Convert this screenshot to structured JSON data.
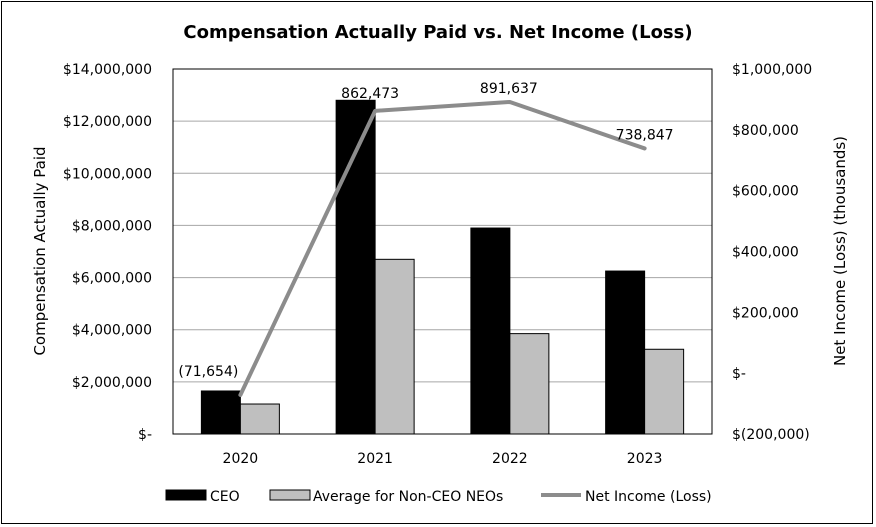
{
  "chart_data": {
    "type": "bar",
    "title": "Compensation Actually Paid vs. Net Income (Loss)",
    "categories": [
      "2020",
      "2021",
      "2022",
      "2023"
    ],
    "ylabel": "Compensation Actually Paid",
    "y2label": "Net Income (Loss) (thousands)",
    "ylim": [
      0,
      14000000
    ],
    "y2lim": [
      -200000,
      1000000
    ],
    "yticks": [
      {
        "value": 0,
        "label": "$-"
      },
      {
        "value": 2000000,
        "label": "$2,000,000"
      },
      {
        "value": 4000000,
        "label": "$4,000,000"
      },
      {
        "value": 6000000,
        "label": "$6,000,000"
      },
      {
        "value": 8000000,
        "label": "$8,000,000"
      },
      {
        "value": 10000000,
        "label": "$10,000,000"
      },
      {
        "value": 12000000,
        "label": "$12,000,000"
      },
      {
        "value": 14000000,
        "label": "$14,000,000"
      }
    ],
    "y2ticks": [
      {
        "value": -200000,
        "label": "$(200,000)"
      },
      {
        "value": 0,
        "label": "$-"
      },
      {
        "value": 200000,
        "label": "$200,000"
      },
      {
        "value": 400000,
        "label": "$400,000"
      },
      {
        "value": 600000,
        "label": "$600,000"
      },
      {
        "value": 800000,
        "label": "$800,000"
      },
      {
        "value": 1000000,
        "label": "$1,000,000"
      }
    ],
    "grid": true,
    "legend_position": "bottom",
    "series": [
      {
        "name": "CEO",
        "kind": "bar",
        "axis": "left",
        "color": "#000000",
        "values": [
          1650000,
          12800000,
          7900000,
          6250000
        ]
      },
      {
        "name": "Average for Non-CEO NEOs",
        "kind": "bar",
        "axis": "left",
        "color": "#bfbfbf",
        "values": [
          1150000,
          6700000,
          3850000,
          3250000
        ]
      },
      {
        "name": "Net Income (Loss)",
        "kind": "line",
        "axis": "right",
        "color": "#8c8c8c",
        "values": [
          -71654,
          862473,
          891637,
          738847
        ],
        "labels": [
          "(71,654)",
          "862,473",
          "891,637",
          "738,847"
        ]
      }
    ]
  }
}
